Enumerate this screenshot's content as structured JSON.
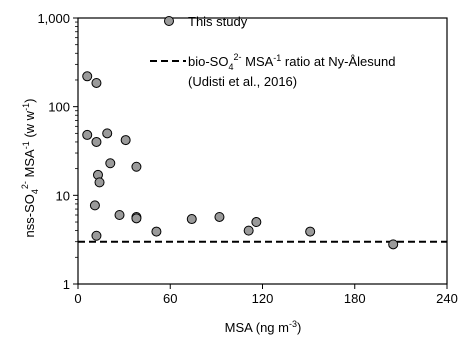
{
  "chart_data": {
    "type": "scatter",
    "xlabel": "MSA (ng m",
    "xlabel_sup": "-3",
    "xlabel_close": ")",
    "ylabel": {
      "part1": "nss-SO",
      "sub4": "4",
      "sup2": "2-",
      "part2": " MSA",
      "sup1": "-1",
      "part3": " (w w",
      "sup3": "-1",
      "part4": ")"
    },
    "x_scale": "linear",
    "y_scale": "log",
    "xlim": [
      0,
      240
    ],
    "ylim": [
      1,
      1000
    ],
    "x_ticks": [
      0,
      60,
      120,
      180,
      240
    ],
    "x_tick_labels": [
      "0",
      "60",
      "120",
      "180",
      "240"
    ],
    "y_ticks": [
      1,
      10,
      100,
      1000
    ],
    "y_tick_labels": [
      "1",
      "10",
      "100",
      "1,000"
    ],
    "grid": false,
    "legend_position": "top-right",
    "series": [
      {
        "name": "This study",
        "marker": "circle",
        "color": "#9a9a9a",
        "edge_color": "#000000",
        "points": [
          {
            "x": 6,
            "y": 220
          },
          {
            "x": 12,
            "y": 185
          },
          {
            "x": 6,
            "y": 48
          },
          {
            "x": 12,
            "y": 40
          },
          {
            "x": 19,
            "y": 50
          },
          {
            "x": 31,
            "y": 42
          },
          {
            "x": 21,
            "y": 23
          },
          {
            "x": 38,
            "y": 21
          },
          {
            "x": 13,
            "y": 17
          },
          {
            "x": 14,
            "y": 14
          },
          {
            "x": 11,
            "y": 7.7
          },
          {
            "x": 12,
            "y": 3.5
          },
          {
            "x": 27,
            "y": 6.0
          },
          {
            "x": 38,
            "y": 5.7
          },
          {
            "x": 38,
            "y": 5.5
          },
          {
            "x": 51,
            "y": 3.9
          },
          {
            "x": 74,
            "y": 5.4
          },
          {
            "x": 92,
            "y": 5.7
          },
          {
            "x": 111,
            "y": 4.0
          },
          {
            "x": 116,
            "y": 5.0
          },
          {
            "x": 151,
            "y": 3.9
          },
          {
            "x": 205,
            "y": 2.8
          }
        ]
      },
      {
        "name_parts": {
          "part1": "bio-SO",
          "sub4": "4",
          "sup2": "2-",
          "part2": " MSA",
          "sup1": "-1",
          "part3": " ratio at Ny-Ålesund"
        },
        "name_line2": "(Udisti et al., 2016)",
        "type": "hline",
        "y": 3.0,
        "style": "dashed",
        "color": "#000000"
      }
    ]
  }
}
